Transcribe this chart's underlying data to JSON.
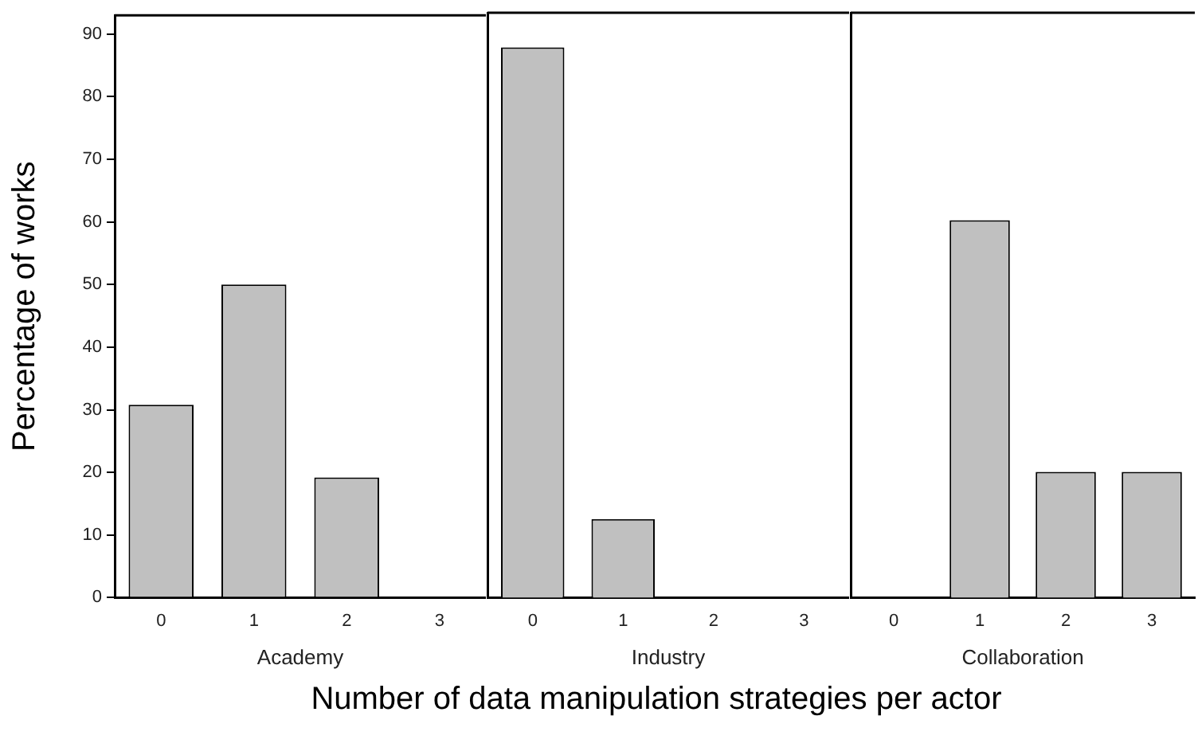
{
  "chart_data": [
    {
      "type": "bar",
      "xlabel": "Academy",
      "ylabel": "Percentage of works",
      "categories": [
        "0",
        "1",
        "2",
        "3"
      ],
      "values": [
        30.8,
        50,
        19.2,
        0
      ],
      "color": "#c0c0c0",
      "ylim": [
        0,
        93
      ],
      "yticks": [
        0,
        10,
        20,
        30,
        40,
        50,
        60,
        70,
        80,
        90
      ],
      "annotations": [
        "Number of data manipulation strategies per actor"
      ]
    },
    {
      "type": "bar",
      "xlabel": "Industry",
      "categories": [
        "0",
        "1",
        "2",
        "3"
      ],
      "values": [
        87.5,
        12.5,
        0,
        0
      ],
      "color": "#c0c0c0",
      "ylim": [
        0,
        93
      ],
      "yticks": [
        0,
        10,
        20,
        30,
        40,
        50,
        60,
        70,
        80,
        90
      ],
      "tick_labels": "x"
    },
    {
      "type": "bar",
      "xlabel": "Collaboration",
      "categories": [
        "0",
        "1",
        "2",
        "3"
      ],
      "values": [
        0,
        60,
        20,
        20
      ],
      "color": "#c0c0c0",
      "ylim": [
        0,
        93
      ],
      "yticks": [
        0,
        10,
        20,
        30,
        40,
        50,
        60,
        70,
        80,
        90
      ],
      "tick_labels": "x"
    }
  ]
}
